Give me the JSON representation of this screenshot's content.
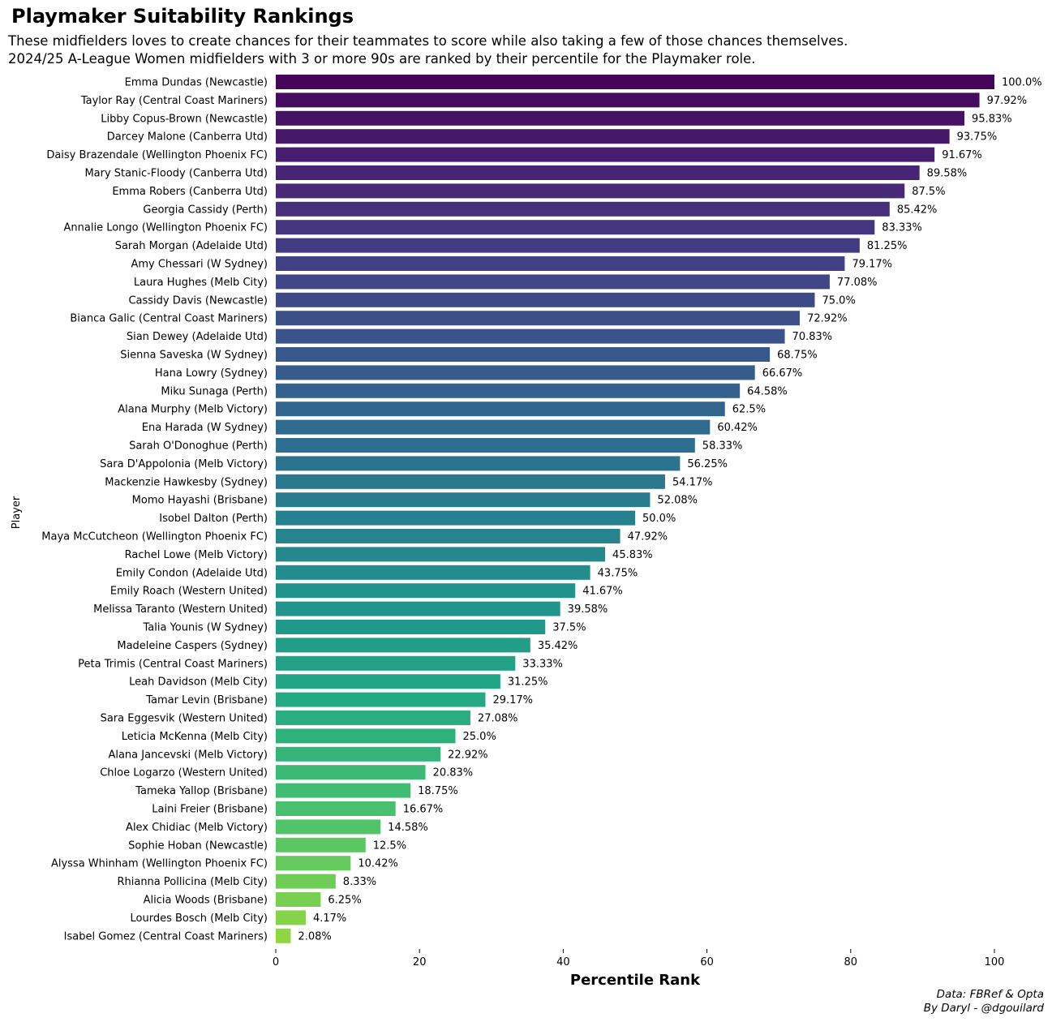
{
  "chart_data": {
    "type": "bar",
    "orientation": "horizontal",
    "title": "Playmaker Suitability Rankings",
    "subtitle": [
      "These midfielders loves to create chances for their teammates to score while also taking a few of those chances themselves.",
      "2024/25 A-League Women midfielders with 3 or more 90s are ranked by their percentile for the Playmaker role."
    ],
    "xlabel": "Percentile Rank",
    "ylabel": "Player",
    "xlim": [
      0,
      100
    ],
    "xticks": [
      0,
      20,
      40,
      60,
      80,
      100
    ],
    "grid": false,
    "colormap": "viridis",
    "categories": [
      "Emma Dundas (Newcastle)",
      "Taylor Ray (Central Coast Mariners)",
      "Libby Copus-Brown (Newcastle)",
      "Darcey Malone (Canberra Utd)",
      "Daisy Brazendale (Wellington Phoenix FC)",
      "Mary Stanic-Floody (Canberra Utd)",
      "Emma Robers (Canberra Utd)",
      "Georgia Cassidy (Perth)",
      "Annalie Longo (Wellington Phoenix FC)",
      "Sarah Morgan (Adelaide Utd)",
      "Amy Chessari (W Sydney)",
      "Laura Hughes (Melb City)",
      "Cassidy Davis (Newcastle)",
      "Bianca Galic (Central Coast Mariners)",
      "Sian Dewey (Adelaide Utd)",
      "Sienna Saveska (W Sydney)",
      "Hana Lowry (Sydney)",
      "Miku Sunaga (Perth)",
      "Alana Murphy (Melb Victory)",
      "Ena Harada (W Sydney)",
      "Sarah O'Donoghue (Perth)",
      "Sara D'Appolonia (Melb Victory)",
      "Mackenzie Hawkesby (Sydney)",
      "Momo Hayashi (Brisbane)",
      "Isobel Dalton (Perth)",
      "Maya McCutcheon (Wellington Phoenix FC)",
      "Rachel Lowe (Melb Victory)",
      "Emily Condon (Adelaide Utd)",
      "Emily Roach (Western United)",
      "Melissa Taranto (Western United)",
      "Talia Younis (W Sydney)",
      "Madeleine Caspers (Sydney)",
      "Peta Trimis (Central Coast Mariners)",
      "Leah Davidson (Melb City)",
      "Tamar Levin (Brisbane)",
      "Sara Eggesvik (Western United)",
      "Leticia McKenna (Melb City)",
      "Alana Jancevski (Melb Victory)",
      "Chloe Logarzo (Western United)",
      "Tameka Yallop (Brisbane)",
      "Laini Freier (Brisbane)",
      "Alex Chidiac (Melb Victory)",
      "Sophie Hoban (Newcastle)",
      "Alyssa Whinham (Wellington Phoenix FC)",
      "Rhianna Pollicina (Melb City)",
      "Alicia Woods (Brisbane)",
      "Lourdes Bosch (Melb City)",
      "Isabel Gomez (Central Coast Mariners)"
    ],
    "values": [
      100.0,
      97.92,
      95.83,
      93.75,
      91.67,
      89.58,
      87.5,
      85.42,
      83.33,
      81.25,
      79.17,
      77.08,
      75.0,
      72.92,
      70.83,
      68.75,
      66.67,
      64.58,
      62.5,
      60.42,
      58.33,
      56.25,
      54.17,
      52.08,
      50.0,
      47.92,
      45.83,
      43.75,
      41.67,
      39.58,
      37.5,
      35.42,
      33.33,
      31.25,
      29.17,
      27.08,
      25.0,
      22.92,
      20.83,
      18.75,
      16.67,
      14.58,
      12.5,
      10.42,
      8.33,
      6.25,
      4.17,
      2.08
    ],
    "value_labels": [
      "100.0%",
      "97.92%",
      "95.83%",
      "93.75%",
      "91.67%",
      "89.58%",
      "87.5%",
      "85.42%",
      "83.33%",
      "81.25%",
      "79.17%",
      "77.08%",
      "75.0%",
      "72.92%",
      "70.83%",
      "68.75%",
      "66.67%",
      "64.58%",
      "62.5%",
      "60.42%",
      "58.33%",
      "56.25%",
      "54.17%",
      "52.08%",
      "50.0%",
      "47.92%",
      "45.83%",
      "43.75%",
      "41.67%",
      "39.58%",
      "37.5%",
      "35.42%",
      "33.33%",
      "31.25%",
      "29.17%",
      "27.08%",
      "25.0%",
      "22.92%",
      "20.83%",
      "18.75%",
      "16.67%",
      "14.58%",
      "12.5%",
      "10.42%",
      "8.33%",
      "6.25%",
      "4.17%",
      "2.08%"
    ]
  },
  "credits": {
    "line1": "Data: FBRef & Opta",
    "line2": "By Daryl - @dgouilard"
  }
}
